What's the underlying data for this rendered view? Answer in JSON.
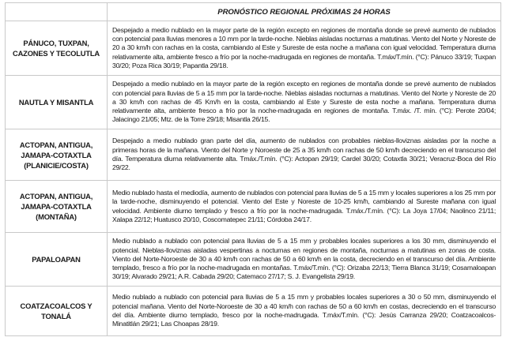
{
  "header": {
    "title": "PRONÓSTICO REGIONAL PRÓXIMAS 24 HORAS"
  },
  "rows": [
    {
      "region": "PÁNUCO, TUXPAN, CAZONES Y TECOLUTLA",
      "forecast": "Despejado a medio nublado en la mayor parte de la región excepto en regiones de montaña donde se prevé aumento de nublados con potencial para lluvias menores a 10 mm por la tarde-noche. Nieblas aisladas nocturnas a matutinas. Viento del Norte y Noreste de 20 a 30 km/h con rachas en la costa, cambiando al Este y Sureste de esta noche a mañana con igual velocidad. Temperatura diurna relativamente alta, ambiente fresco a frío por la noche-madrugada en regiones de montaña. T.máx/T.mín. (°C): Pánuco 33/19; Tuxpan 30/20; Poza Rica 30/19; Papantla 29/18."
    },
    {
      "region": "NAUTLA Y MISANTLA",
      "forecast": "Despejado a medio nublado en la mayor parte de la región excepto en regiones de montaña donde se prevé aumento de nublados con potencial para lluvias de 5 a 15 mm por la tarde-noche. Nieblas aisladas nocturnas a matutinas. Viento del Norte y Noreste de 20 a 30 km/h con rachas de 45 Km/h en la costa, cambiando al Este y Sureste de esta noche a mañana. Temperatura diurna relativamente alta, ambiente fresco a frío por la noche-madrugada en regiones de montaña. T.máx. /T. mín. (°C): Perote 20/04; Jalacingo 21/05; Mtz. de la Torre 29/18; Misantla 26/15."
    },
    {
      "region": "ACTOPAN, ANTIGUA, JAMAPA-COTAXTLA (PLANICIE/COSTA)",
      "forecast": "Despejado a medio nublado gran parte del día, aumento de nublados con probables nieblas-lloviznas aisladas por la noche a primeras horas de la mañana. Viento del Norte y Noroeste de 25 a 35 km/h con rachas de 50 km/h decreciendo en el transcurso del día. Temperatura diurna relativamente alta. Tmáx./T.mín. (°C): Actopan 29/19; Cardel 30/20; Cotaxtla 30/21; Veracruz-Boca del Río 29/22."
    },
    {
      "region": "ACTOPAN, ANTIGUA, JAMAPA-COTAXTLA (MONTAÑA)",
      "forecast": "Medio nublado hasta el mediodía, aumento de nublados con potencial para lluvias de 5 a 15 mm y locales superiores a los 25 mm por la tarde-noche, disminuyendo el potencial. Viento del Este y Noreste de 10-25 km/h, cambiando al Sureste mañana con igual velocidad. Ambiente diurno templado y fresco a frío por la noche-madrugada. T.máx./T.mín. (°C): La Joya 17/04; Naolinco 21/11; Xalapa 22/12; Huatusco 20/10, Coscomatepec 21/11; Córdoba 24/17."
    },
    {
      "region": "PAPALOAPAN",
      "forecast": "Medio nublado a nublado con potencial para lluvias de 5 a 15 mm y probables locales superiores a los 30 mm, disminuyendo el potencial. Nieblas-lloviznas aisladas vespertinas a nocturnas en regiones de montaña, nocturnas a matutinas en zonas de costa. Viento del Norte-Noroeste de 30 a 40 km/h con rachas de 50 a 60 km/h en la costa, decreciendo en el transcurso del día. Ambiente templado, fresco a frío por la noche-madrugada en montañas. T.máx/T.mín. (°C): Orizaba 22/13; Tierra Blanca 31/19; Cosamaloapan 30/19; Alvarado 29/21; A.R. Cabada 29/20; Catemaco 27/17; S. J. Evangelista 29/19."
    },
    {
      "region": "COATZACOALCOS Y TONALÁ",
      "forecast": "Medio nublado a nublado con potencial para lluvias de 5 a 15 mm y probables locales superiores a 30 o 50 mm, disminuyendo el potencial mañana. Viento del Norte-Noroeste de 30 a 40 km/h con rachas de 50 a 60 km/h en costas, decreciendo en el transcurso del día. Ambiente diurno templado, fresco por la noche-madrugada. T.máx/T.mín. (°C): Jesús Carranza 29/20; Coatzacoalcos-Minatitlán 29/21; Las Choapas 28/19."
    }
  ]
}
